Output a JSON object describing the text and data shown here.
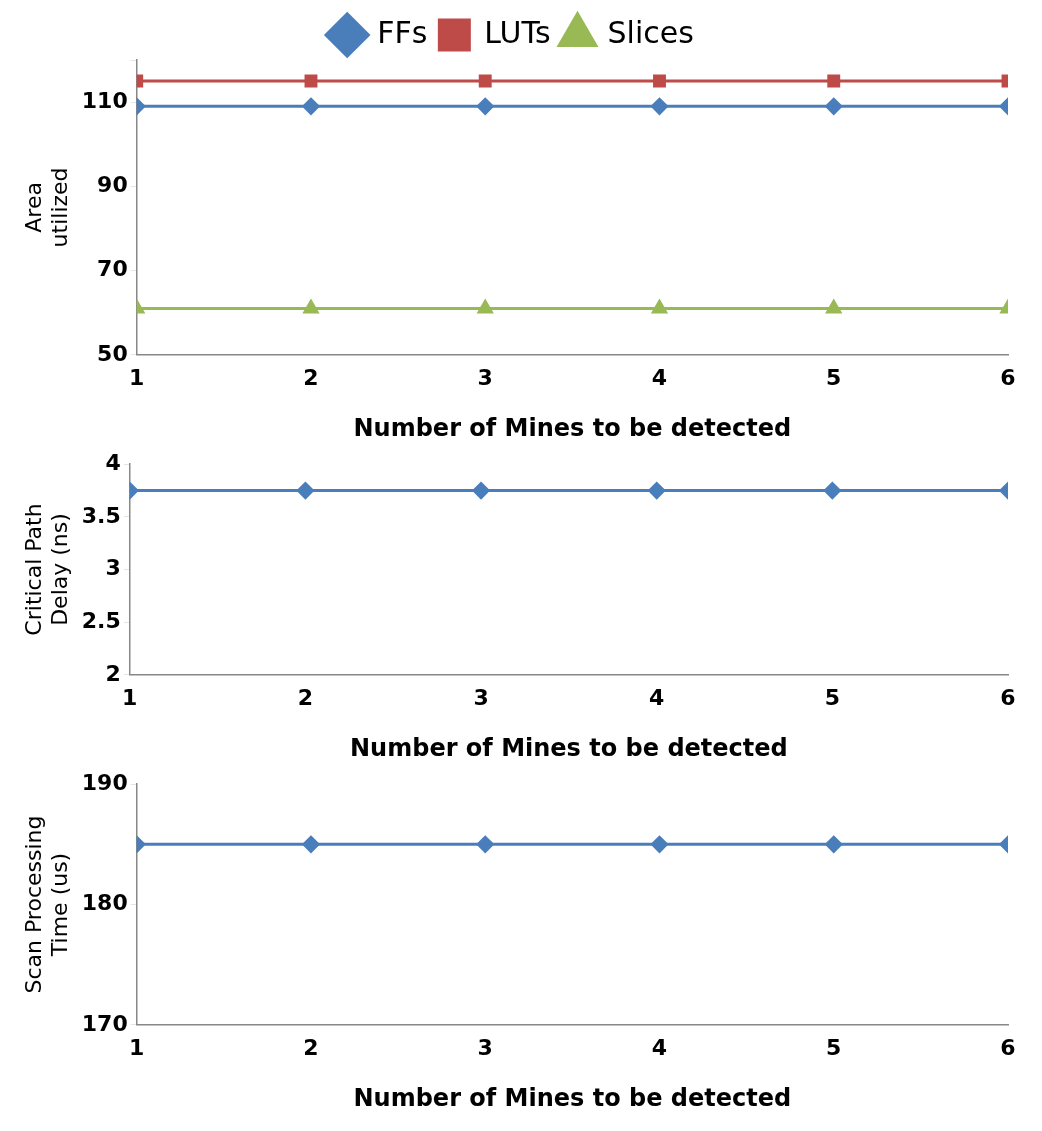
{
  "chart_data": [
    {
      "type": "line",
      "xlabel": "Number of Mines to be detected",
      "ylabel": "Area utilized",
      "x": [
        1,
        2,
        3,
        4,
        5,
        6
      ],
      "xlim": [
        1,
        6
      ],
      "xticks": [
        1,
        2,
        3,
        4,
        5,
        6
      ],
      "ylim": [
        50,
        120
      ],
      "yticks": [
        50,
        70,
        90,
        110,
        {
          "value": 120,
          "label": null
        }
      ],
      "grid": false,
      "legend": "top",
      "series": [
        {
          "name": "FFs",
          "color": "#4a7ebb",
          "marker": "diamond",
          "values": [
            109,
            109,
            109,
            109,
            109,
            109
          ]
        },
        {
          "name": "LUTs",
          "color": "#be4b48",
          "marker": "square",
          "values": [
            115,
            115,
            115,
            115,
            115,
            115
          ]
        },
        {
          "name": "Slices",
          "color": "#98b954",
          "marker": "triangle",
          "values": [
            61,
            61,
            61,
            61,
            61,
            61
          ]
        }
      ]
    },
    {
      "type": "line",
      "xlabel": "Number of Mines to be detected",
      "ylabel": "Critical Path Delay (ns)",
      "x": [
        1,
        2,
        3,
        4,
        5,
        6
      ],
      "xlim": [
        1,
        6
      ],
      "xticks": [
        1,
        2,
        3,
        4,
        5,
        6
      ],
      "ylim": [
        2,
        4
      ],
      "yticks": [
        2,
        2.5,
        3,
        3.5,
        4
      ],
      "grid": false,
      "marker": "diamond",
      "series": [
        {
          "color": "#4a7ebb",
          "values": [
            3.75,
            3.75,
            3.75,
            3.75,
            3.75,
            3.75
          ]
        }
      ]
    },
    {
      "type": "line",
      "xlabel": "Number of Mines to be detected",
      "ylabel": "Scan Processing Time (us)",
      "x": [
        1,
        2,
        3,
        4,
        5,
        6
      ],
      "xlim": [
        1,
        6
      ],
      "xticks": [
        1,
        2,
        3,
        4,
        5,
        6
      ],
      "ylim": [
        170,
        190
      ],
      "yticks": [
        170,
        180,
        190
      ],
      "grid": false,
      "marker": "diamond",
      "series": [
        {
          "color": "#4a7ebb",
          "values": [
            185,
            185,
            185,
            185,
            185,
            185
          ]
        }
      ]
    }
  ]
}
